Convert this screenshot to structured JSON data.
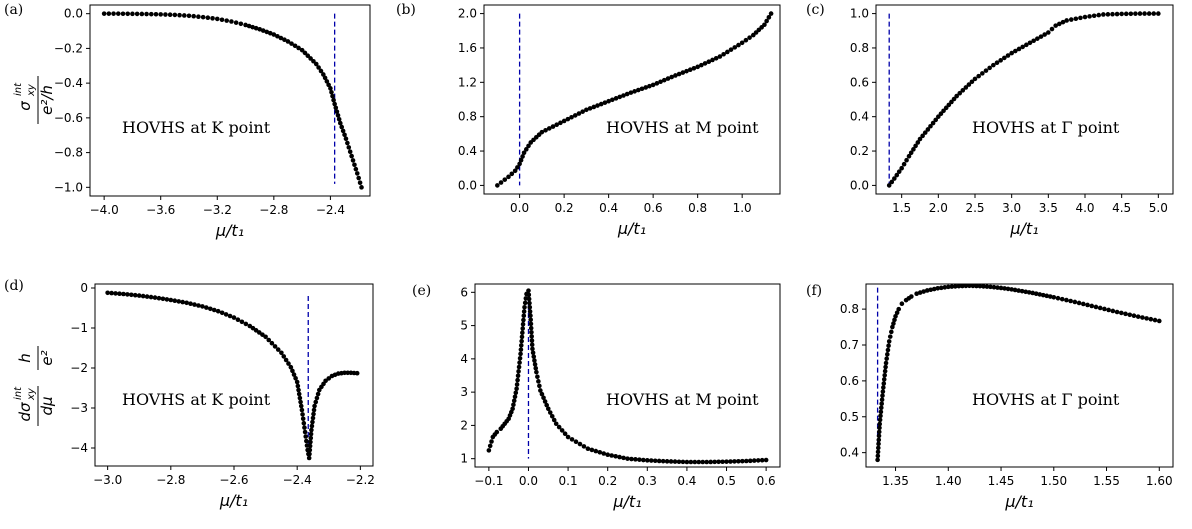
{
  "figure": {
    "colors": {
      "points": "#000000",
      "marker_line": "#0000aa",
      "axes": "#000000"
    }
  },
  "chart_data": [
    {
      "panel": "(a)",
      "type": "scatter",
      "title": "",
      "xlabel": "μ/t₁",
      "ylabel": "σxy^int / (e²/h)",
      "ylabel_parts": {
        "num": "σ",
        "sub": "xy",
        "sup": "int",
        "den": "e²/h"
      },
      "annotation": "HOVHS at K point",
      "xlim": [
        -4.1,
        -2.12
      ],
      "ylim": [
        -1.05,
        0.05
      ],
      "xticks": [
        -4.0,
        -3.6,
        -3.2,
        -2.8,
        -2.4
      ],
      "xtick_labels": [
        "−4.0",
        "−3.6",
        "−3.2",
        "−2.8",
        "−2.4"
      ],
      "yticks": [
        0.0,
        -0.2,
        -0.4,
        -0.6,
        -0.8,
        -1.0
      ],
      "ytick_labels": [
        "0.0",
        "−0.2",
        "−0.4",
        "−0.6",
        "−0.8",
        "−1.0"
      ],
      "vline": {
        "x": -2.37,
        "y_range": [
          -0.98,
          0.0
        ]
      },
      "grid": false,
      "series": [
        {
          "x": [
            -4.0,
            -3.9,
            -3.8,
            -3.7,
            -3.6,
            -3.5,
            -3.4,
            -3.3,
            -3.2,
            -3.1,
            -3.0,
            -2.9,
            -2.8,
            -2.7,
            -2.6,
            -2.5,
            -2.45,
            -2.4,
            -2.37,
            -2.33,
            -2.29,
            -2.25,
            -2.21,
            -2.18
          ],
          "y": [
            0.0,
            0.0,
            -0.001,
            -0.002,
            -0.004,
            -0.007,
            -0.012,
            -0.02,
            -0.03,
            -0.045,
            -0.065,
            -0.09,
            -0.12,
            -0.16,
            -0.21,
            -0.29,
            -0.35,
            -0.43,
            -0.52,
            -0.63,
            -0.72,
            -0.82,
            -0.92,
            -1.0
          ]
        }
      ]
    },
    {
      "panel": "(b)",
      "type": "scatter",
      "title": "",
      "xlabel": "μ/t₁",
      "ylabel": "",
      "annotation": "HOVHS at M point",
      "xlim": [
        -0.16,
        1.17
      ],
      "ylim": [
        -0.1,
        2.1
      ],
      "xticks": [
        0.0,
        0.2,
        0.4,
        0.6,
        0.8,
        1.0
      ],
      "xtick_labels": [
        "0.0",
        "0.2",
        "0.4",
        "0.6",
        "0.8",
        "1.0"
      ],
      "yticks": [
        0.0,
        0.4,
        0.8,
        1.2,
        1.6,
        2.0
      ],
      "ytick_labels": [
        "0.0",
        "0.4",
        "0.8",
        "1.2",
        "1.6",
        "2.0"
      ],
      "vline": {
        "x": 0.0,
        "y_range": [
          0.0,
          2.0
        ]
      },
      "grid": false,
      "series": [
        {
          "x": [
            -0.1,
            -0.05,
            -0.02,
            0.0,
            0.02,
            0.05,
            0.1,
            0.2,
            0.3,
            0.4,
            0.5,
            0.6,
            0.7,
            0.8,
            0.9,
            1.0,
            1.05,
            1.1,
            1.13
          ],
          "y": [
            0.0,
            0.1,
            0.17,
            0.25,
            0.38,
            0.5,
            0.62,
            0.75,
            0.88,
            0.98,
            1.08,
            1.17,
            1.28,
            1.38,
            1.5,
            1.66,
            1.75,
            1.87,
            2.0
          ]
        }
      ]
    },
    {
      "panel": "(c)",
      "type": "scatter",
      "title": "",
      "xlabel": "μ/t₁",
      "ylabel": "",
      "annotation": "HOVHS at Γ point",
      "xlim": [
        1.15,
        5.2
      ],
      "ylim": [
        -0.05,
        1.05
      ],
      "xticks": [
        1.5,
        2.0,
        2.5,
        3.0,
        3.5,
        4.0,
        4.5,
        5.0
      ],
      "xtick_labels": [
        "1.5",
        "2.0",
        "2.5",
        "3.0",
        "3.5",
        "4.0",
        "4.5",
        "5.0"
      ],
      "yticks": [
        0.0,
        0.2,
        0.4,
        0.6,
        0.8,
        1.0
      ],
      "ytick_labels": [
        "0.0",
        "0.2",
        "0.4",
        "0.6",
        "0.8",
        "1.0"
      ],
      "vline": {
        "x": 1.33,
        "y_range": [
          0.0,
          1.0
        ]
      },
      "grid": false,
      "series": [
        {
          "x": [
            1.33,
            1.4,
            1.5,
            1.6,
            1.75,
            2.0,
            2.25,
            2.5,
            2.75,
            3.0,
            3.25,
            3.5,
            3.6,
            3.75,
            4.0,
            4.25,
            4.5,
            4.75,
            5.0
          ],
          "y": [
            0.0,
            0.04,
            0.1,
            0.17,
            0.27,
            0.4,
            0.52,
            0.62,
            0.7,
            0.77,
            0.83,
            0.89,
            0.93,
            0.96,
            0.98,
            0.995,
            0.998,
            1.0,
            1.0
          ]
        }
      ]
    },
    {
      "panel": "(d)",
      "type": "scatter",
      "title": "",
      "xlabel": "μ/t₁",
      "ylabel": "dσxy^int/dμ · h/e²",
      "ylabel_parts": {
        "num": "dσ",
        "sub": "xy",
        "sup": "int",
        "den": "dμ",
        "num2": "h",
        "den2": "e²"
      },
      "annotation": "HOVHS at K point",
      "xlim": [
        -3.04,
        -2.16
      ],
      "ylim": [
        -4.45,
        0.1
      ],
      "xticks": [
        -3.0,
        -2.8,
        -2.6,
        -2.4,
        -2.2
      ],
      "xtick_labels": [
        "−3.0",
        "−2.8",
        "−2.6",
        "−2.4",
        "−2.2"
      ],
      "yticks": [
        0,
        -1,
        -2,
        -3,
        -4
      ],
      "ytick_labels": [
        "0",
        "−1",
        "−2",
        "−3",
        "−4"
      ],
      "vline": {
        "x": -2.365,
        "y_range": [
          -4.3,
          -0.2
        ]
      },
      "grid": false,
      "series": [
        {
          "x": [
            -3.0,
            -2.95,
            -2.9,
            -2.85,
            -2.8,
            -2.75,
            -2.7,
            -2.65,
            -2.6,
            -2.55,
            -2.5,
            -2.45,
            -2.42,
            -2.4,
            -2.385,
            -2.375,
            -2.367,
            -2.362,
            -2.355,
            -2.345,
            -2.33,
            -2.31,
            -2.29,
            -2.27,
            -2.25,
            -2.23,
            -2.21
          ],
          "y": [
            -0.12,
            -0.15,
            -0.19,
            -0.24,
            -0.3,
            -0.37,
            -0.46,
            -0.58,
            -0.74,
            -0.95,
            -1.22,
            -1.62,
            -1.98,
            -2.35,
            -3.05,
            -3.6,
            -4.05,
            -4.25,
            -3.55,
            -2.95,
            -2.55,
            -2.32,
            -2.2,
            -2.14,
            -2.12,
            -2.12,
            -2.13
          ]
        }
      ]
    },
    {
      "panel": "(e)",
      "type": "scatter",
      "title": "",
      "xlabel": "μ/t₁",
      "ylabel": "",
      "annotation": "HOVHS at M point",
      "xlim": [
        -0.135,
        0.635
      ],
      "ylim": [
        0.75,
        6.25
      ],
      "xticks": [
        -0.1,
        0.0,
        0.1,
        0.2,
        0.3,
        0.4,
        0.5,
        0.6
      ],
      "xtick_labels": [
        "−0.1",
        "0.0",
        "0.1",
        "0.2",
        "0.3",
        "0.4",
        "0.5",
        "0.6"
      ],
      "yticks": [
        1,
        2,
        3,
        4,
        5,
        6
      ],
      "ytick_labels": [
        "1",
        "2",
        "3",
        "4",
        "5",
        "6"
      ],
      "vline": {
        "x": 0.0,
        "y_range": [
          1.0,
          6.1
        ]
      },
      "grid": false,
      "series": [
        {
          "x": [
            -0.1,
            -0.09,
            -0.08,
            -0.07,
            -0.06,
            -0.05,
            -0.04,
            -0.03,
            -0.02,
            -0.01,
            -0.005,
            0.0,
            0.005,
            0.01,
            0.02,
            0.03,
            0.05,
            0.07,
            0.1,
            0.15,
            0.2,
            0.25,
            0.3,
            0.35,
            0.4,
            0.45,
            0.5,
            0.55,
            0.6
          ],
          "y": [
            1.25,
            1.65,
            1.8,
            1.9,
            2.05,
            2.2,
            2.5,
            3.1,
            4.15,
            5.55,
            5.95,
            6.05,
            5.3,
            4.3,
            3.6,
            3.05,
            2.5,
            2.05,
            1.65,
            1.3,
            1.12,
            1.0,
            0.95,
            0.92,
            0.9,
            0.9,
            0.91,
            0.93,
            0.96
          ]
        }
      ]
    },
    {
      "panel": "(f)",
      "type": "scatter",
      "title": "",
      "xlabel": "μ/t₁",
      "ylabel": "",
      "annotation": "HOVHS at Γ point",
      "xlim": [
        1.322,
        1.613
      ],
      "ylim": [
        0.36,
        0.87
      ],
      "xticks": [
        1.35,
        1.4,
        1.45,
        1.5,
        1.55,
        1.6
      ],
      "xtick_labels": [
        "1.35",
        "1.40",
        "1.45",
        "1.50",
        "1.55",
        "1.60"
      ],
      "yticks": [
        0.4,
        0.5,
        0.6,
        0.7,
        0.8
      ],
      "ytick_labels": [
        "0.4",
        "0.5",
        "0.6",
        "0.7",
        "0.8"
      ],
      "vline": {
        "x": 1.333,
        "y_range": [
          0.37,
          0.86
        ]
      },
      "grid": false,
      "series": [
        {
          "x": [
            1.333,
            1.335,
            1.338,
            1.341,
            1.344,
            1.347,
            1.35,
            1.353,
            1.356,
            1.36,
            1.365,
            1.37,
            1.38,
            1.39,
            1.4,
            1.41,
            1.42,
            1.43,
            1.44,
            1.45,
            1.46,
            1.47,
            1.48,
            1.49,
            1.5,
            1.52,
            1.54,
            1.56,
            1.58,
            1.6
          ],
          "y": [
            0.38,
            0.48,
            0.57,
            0.65,
            0.71,
            0.75,
            0.78,
            0.8,
            0.815,
            0.825,
            0.835,
            0.843,
            0.852,
            0.858,
            0.862,
            0.864,
            0.865,
            0.864,
            0.862,
            0.859,
            0.855,
            0.85,
            0.845,
            0.839,
            0.833,
            0.82,
            0.806,
            0.792,
            0.779,
            0.767
          ]
        }
      ]
    }
  ]
}
